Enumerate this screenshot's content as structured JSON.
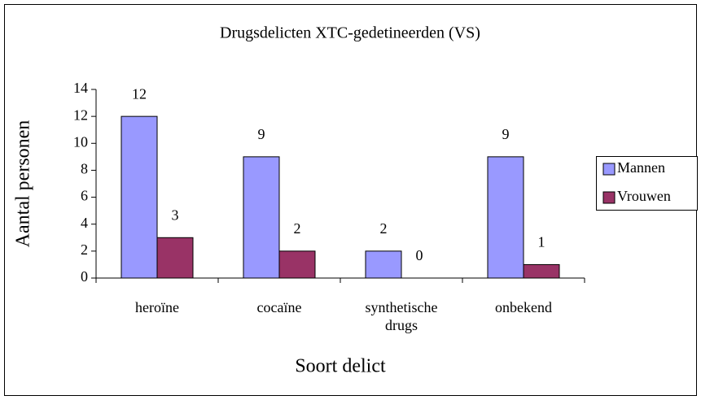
{
  "chart_data": {
    "type": "bar",
    "title": "Drugsdelicten XTC-gedetineerden (VS)",
    "x_label": "Soort delict",
    "y_label": "Aantal personen",
    "categories": [
      "heroïne",
      "cocaïne",
      "synthetische drugs",
      "onbekend"
    ],
    "series": [
      {
        "name": "Mannen",
        "color": "#9999ff",
        "values": [
          12,
          9,
          2,
          9
        ]
      },
      {
        "name": "Vrouwen",
        "color": "#993366",
        "values": [
          3,
          2,
          0,
          1
        ]
      }
    ],
    "ylim": [
      0,
      14
    ],
    "yticks": [
      0,
      2,
      4,
      6,
      8,
      10,
      12,
      14
    ],
    "legend": "right"
  }
}
